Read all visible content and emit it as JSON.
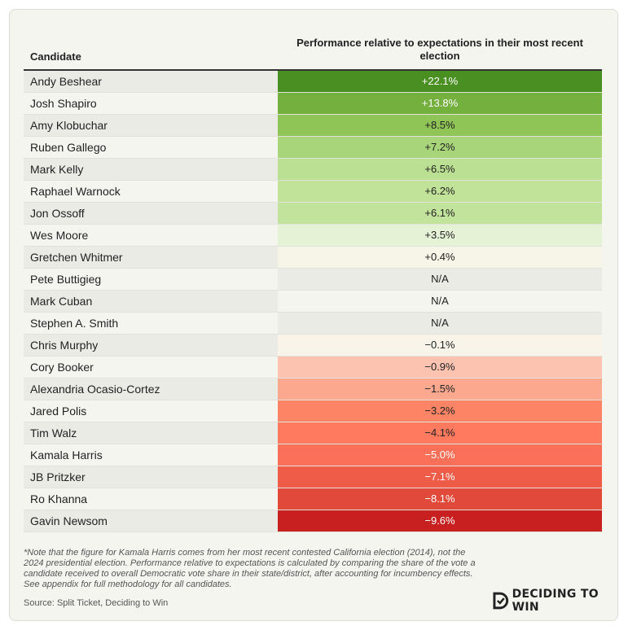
{
  "chart_data": {
    "type": "table",
    "columns": [
      "Candidate",
      "Performance relative to expectations in their most recent election"
    ],
    "rows": [
      {
        "candidate": "Andy Beshear",
        "display": "+22.1%",
        "value": 22.1,
        "color": "#4a8f22",
        "light": true
      },
      {
        "candidate": "Josh Shapiro",
        "display": "+13.8%",
        "value": 13.8,
        "color": "#74b03e",
        "light": true
      },
      {
        "candidate": "Amy Klobuchar",
        "display": "+8.5%",
        "value": 8.5,
        "color": "#8fc456",
        "light": false
      },
      {
        "candidate": "Ruben Gallego",
        "display": "+7.2%",
        "value": 7.2,
        "color": "#a9d57a",
        "light": false
      },
      {
        "candidate": "Mark Kelly",
        "display": "+6.5%",
        "value": 6.5,
        "color": "#bbe093",
        "light": false
      },
      {
        "candidate": "Raphael Warnock",
        "display": "+6.2%",
        "value": 6.2,
        "color": "#c0e299",
        "light": false
      },
      {
        "candidate": "Jon Ossoff",
        "display": "+6.1%",
        "value": 6.1,
        "color": "#c2e39c",
        "light": false
      },
      {
        "candidate": "Wes Moore",
        "display": "+3.5%",
        "value": 3.5,
        "color": "#e6f2d6",
        "light": false
      },
      {
        "candidate": "Gretchen Whitmer",
        "display": "+0.4%",
        "value": 0.4,
        "color": "#f7f5e8",
        "light": false
      },
      {
        "candidate": "Pete Buttigieg",
        "display": "N/A",
        "value": null,
        "color": "#ebebe6",
        "light": false
      },
      {
        "candidate": "Mark Cuban",
        "display": "N/A",
        "value": null,
        "color": "#f5f5f0",
        "light": false
      },
      {
        "candidate": "Stephen A. Smith",
        "display": "N/A",
        "value": null,
        "color": "#ebebe6",
        "light": false
      },
      {
        "candidate": "Chris Murphy",
        "display": "−0.1%",
        "value": -0.1,
        "color": "#f8f4e9",
        "light": false
      },
      {
        "candidate": "Cory Booker",
        "display": "−0.9%",
        "value": -0.9,
        "color": "#fcc3b1",
        "light": false
      },
      {
        "candidate": "Alexandria Ocasio-Cortez",
        "display": "−1.5%",
        "value": -1.5,
        "color": "#fca88f",
        "light": false
      },
      {
        "candidate": "Jared Polis",
        "display": "−3.2%",
        "value": -3.2,
        "color": "#fe8466",
        "light": false
      },
      {
        "candidate": "Tim Walz",
        "display": "−4.1%",
        "value": -4.1,
        "color": "#ff7a5e",
        "light": false
      },
      {
        "candidate": "Kamala Harris",
        "display": "−5.0%",
        "value": -5.0,
        "color": "#fb7058",
        "light": true
      },
      {
        "candidate": "JB Pritzker",
        "display": "−7.1%",
        "value": -7.1,
        "color": "#ef5c48",
        "light": true
      },
      {
        "candidate": "Ro Khanna",
        "display": "−8.1%",
        "value": -8.1,
        "color": "#e1493b",
        "light": true
      },
      {
        "candidate": "Gavin Newsom",
        "display": "−9.6%",
        "value": -9.6,
        "color": "#c81f20",
        "light": true
      }
    ]
  },
  "note": "*Note that the figure for Kamala Harris comes from her most recent contested California election (2014), not the 2024 presidential election. Performance relative to expectations is calculated by comparing the share of the vote a candidate received to overall Democratic vote share in their state/district, after accounting for incumbency effects. See appendix for full methodology for all candidates.",
  "source": "Source: Split Ticket, Deciding to Win",
  "logo": {
    "text": "DECIDING TO WIN",
    "icon": "deciding-to-win-logo-icon"
  }
}
